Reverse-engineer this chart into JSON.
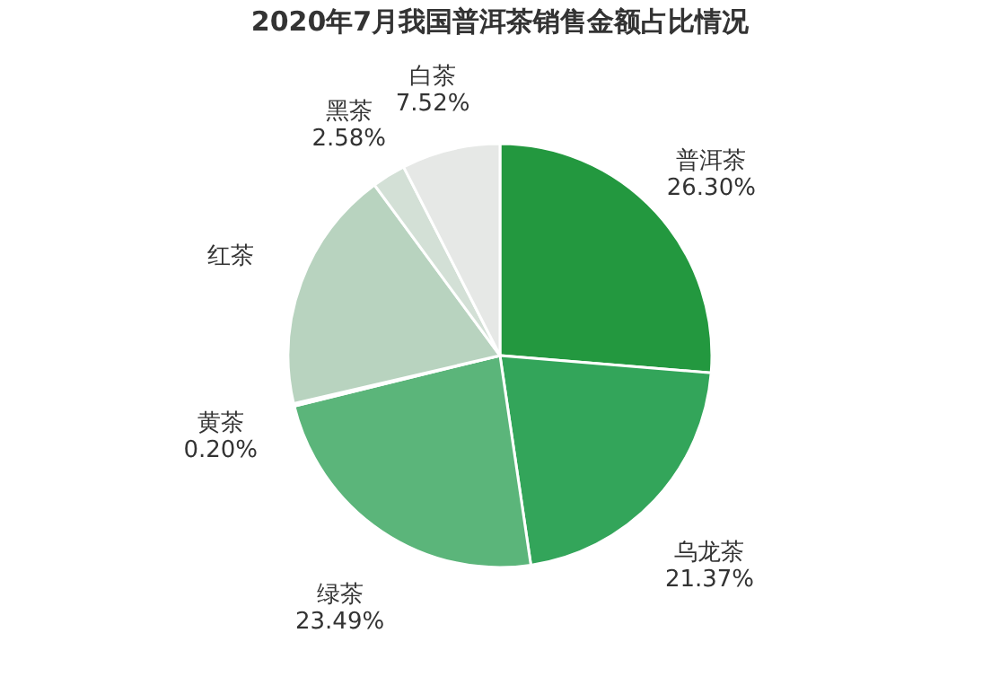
{
  "chart_data": {
    "type": "pie",
    "title": "2020年7月我国普洱茶销售金额占比情况",
    "categories": [
      "普洱茶",
      "乌龙茶",
      "绿茶",
      "黄茶",
      "红茶",
      "黑茶",
      "白茶"
    ],
    "values": [
      26.3,
      21.37,
      23.49,
      0.2,
      18.54,
      2.58,
      7.52
    ],
    "value_labels": [
      "26.30%",
      "21.37%",
      "23.49%",
      "0.20%",
      null,
      "2.58%",
      "7.52%"
    ],
    "colors": [
      "#23983f",
      "#33a55a",
      "#5bb57a",
      "#8fc4a0",
      "#b8d3bf",
      "#d3e0d6",
      "#e6e8e6"
    ],
    "legend": false
  }
}
